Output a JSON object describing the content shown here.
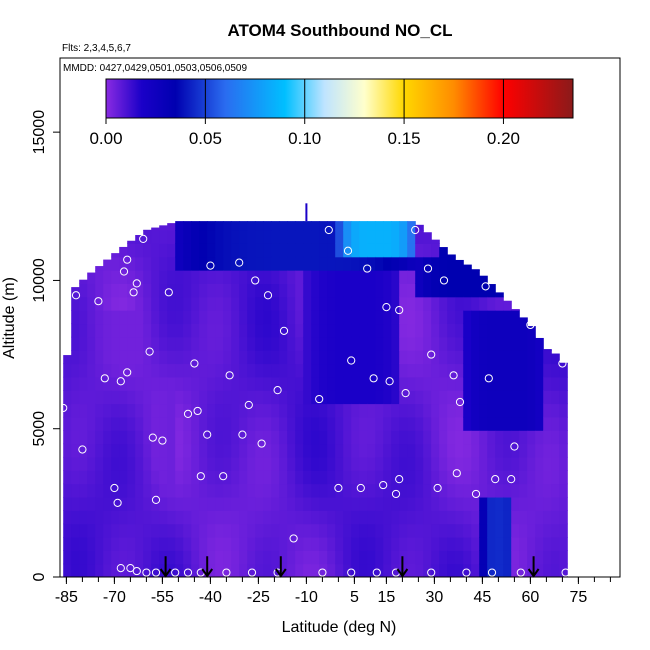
{
  "chart_data": {
    "type": "heatmap",
    "title": "ATOM4 Southbound NO_CL",
    "subtitle_flights": "Flts: 2,3,4,5,6,7",
    "subtitle_dates": "MMDD: 0427,0429,0501,0503,0506,0509",
    "xlabel": "Latitude (deg N)",
    "ylabel": "Altitude (m)",
    "xlim": [
      -87,
      88
    ],
    "ylim": [
      0,
      17500
    ],
    "x_ticks": [
      -85,
      -70,
      -55,
      -40,
      -25,
      -10,
      5,
      15,
      30,
      45,
      60,
      75
    ],
    "x_tick_labels": [
      "-85",
      "-70",
      "-55",
      "-40",
      "-25",
      "-10",
      "5",
      "15",
      "30",
      "45",
      "60",
      "75"
    ],
    "x_minor_step": 5,
    "y_ticks": [
      0,
      5000,
      10000,
      15000
    ],
    "y_tick_labels": [
      "0",
      "5000",
      "10000",
      "15000"
    ],
    "colorbar": {
      "min": 0.0,
      "max": 0.235,
      "ticks": [
        0.0,
        0.05,
        0.1,
        0.15,
        0.2
      ],
      "tick_labels": [
        "0.00",
        "0.05",
        "0.10",
        "0.15",
        "0.20"
      ],
      "stops": [
        {
          "v": 0.0,
          "c": "#8a2be2"
        },
        {
          "v": 0.018,
          "c": "#1a00c8"
        },
        {
          "v": 0.035,
          "c": "#0000b0"
        },
        {
          "v": 0.06,
          "c": "#2a6cf0"
        },
        {
          "v": 0.09,
          "c": "#00bfff"
        },
        {
          "v": 0.11,
          "c": "#bfe4ff"
        },
        {
          "v": 0.13,
          "c": "#ffffcc"
        },
        {
          "v": 0.15,
          "c": "#ffd700"
        },
        {
          "v": 0.175,
          "c": "#ff8c00"
        },
        {
          "v": 0.2,
          "c": "#ff0000"
        },
        {
          "v": 0.235,
          "c": "#8b1a1a"
        }
      ]
    },
    "curtain_envelope": [
      {
        "lat": -86,
        "top": 5900
      },
      {
        "lat": -83,
        "top": 9700
      },
      {
        "lat": -78,
        "top": 10200
      },
      {
        "lat": -70,
        "top": 10900
      },
      {
        "lat": -64,
        "top": 11400
      },
      {
        "lat": -60,
        "top": 11700
      },
      {
        "lat": -50,
        "top": 12000
      },
      {
        "lat": -10,
        "top": 12000
      },
      {
        "lat": 24,
        "top": 12000
      },
      {
        "lat": 28,
        "top": 11600
      },
      {
        "lat": 36,
        "top": 10800
      },
      {
        "lat": 44,
        "top": 10300
      },
      {
        "lat": 52,
        "top": 9400
      },
      {
        "lat": 60,
        "top": 8500
      },
      {
        "lat": 65,
        "top": 7700
      },
      {
        "lat": 70,
        "top": 7400
      },
      {
        "lat": 72,
        "top": 6000
      },
      {
        "lat": 72,
        "top": 0
      }
    ],
    "no_cl_field": {
      "baseline": 0.008,
      "features": [
        {
          "name": "upper-band",
          "lat": [
            -50,
            24
          ],
          "alt": [
            10500,
            12100
          ],
          "value": 0.04
        },
        {
          "name": "upper-high",
          "lat": [
            0,
            24
          ],
          "alt": [
            11000,
            12100
          ],
          "value": 0.085
        },
        {
          "name": "upper-right",
          "lat": [
            24,
            60
          ],
          "alt": [
            9500,
            11000
          ],
          "value": 0.035
        },
        {
          "name": "mid-right",
          "lat": [
            40,
            65
          ],
          "alt": [
            5000,
            9000
          ],
          "value": 0.026
        },
        {
          "name": "mid-center",
          "lat": [
            -10,
            20
          ],
          "alt": [
            6000,
            10200
          ],
          "value": 0.018
        },
        {
          "name": "low-column",
          "lat": [
            45,
            55
          ],
          "alt": [
            0,
            2500
          ],
          "value": 0.045
        },
        {
          "name": "lower-left",
          "lat": [
            -75,
            -50
          ],
          "alt": [
            500,
            9000
          ],
          "value": 0.004
        }
      ]
    },
    "observations": [
      {
        "lat": -86,
        "alt": 5700
      },
      {
        "lat": -80,
        "alt": 4300
      },
      {
        "lat": -82,
        "alt": 9500
      },
      {
        "lat": -75,
        "alt": 9300
      },
      {
        "lat": -73,
        "alt": 6700
      },
      {
        "lat": -70,
        "alt": 3000
      },
      {
        "lat": -69,
        "alt": 2500
      },
      {
        "lat": -68,
        "alt": 6600
      },
      {
        "lat": -66,
        "alt": 6900
      },
      {
        "lat": -67,
        "alt": 10300
      },
      {
        "lat": -66,
        "alt": 10700
      },
      {
        "lat": -64,
        "alt": 9600
      },
      {
        "lat": -63,
        "alt": 9900
      },
      {
        "lat": -61,
        "alt": 11400
      },
      {
        "lat": -59,
        "alt": 7600
      },
      {
        "lat": -57,
        "alt": 2600
      },
      {
        "lat": -58,
        "alt": 4700
      },
      {
        "lat": -55,
        "alt": 4600
      },
      {
        "lat": -53,
        "alt": 9600
      },
      {
        "lat": -47,
        "alt": 5500
      },
      {
        "lat": -45,
        "alt": 7200
      },
      {
        "lat": -44,
        "alt": 5600
      },
      {
        "lat": -43,
        "alt": 3400
      },
      {
        "lat": -41,
        "alt": 4800
      },
      {
        "lat": -40,
        "alt": 10500
      },
      {
        "lat": -36,
        "alt": 3400
      },
      {
        "lat": -34,
        "alt": 6800
      },
      {
        "lat": -31,
        "alt": 10600
      },
      {
        "lat": -30,
        "alt": 4800
      },
      {
        "lat": -28,
        "alt": 5800
      },
      {
        "lat": -26,
        "alt": 10000
      },
      {
        "lat": -24,
        "alt": 4500
      },
      {
        "lat": -22,
        "alt": 9500
      },
      {
        "lat": -19,
        "alt": 6300
      },
      {
        "lat": -17,
        "alt": 8300
      },
      {
        "lat": -14,
        "alt": 1300
      },
      {
        "lat": -6,
        "alt": 6000
      },
      {
        "lat": -3,
        "alt": 11700
      },
      {
        "lat": 0,
        "alt": 3000
      },
      {
        "lat": 3,
        "alt": 11000
      },
      {
        "lat": 4,
        "alt": 7300
      },
      {
        "lat": 7,
        "alt": 3000
      },
      {
        "lat": 9,
        "alt": 10400
      },
      {
        "lat": 11,
        "alt": 6700
      },
      {
        "lat": 14,
        "alt": 3100
      },
      {
        "lat": 15,
        "alt": 9100
      },
      {
        "lat": 16,
        "alt": 6600
      },
      {
        "lat": 18,
        "alt": 2800
      },
      {
        "lat": 19,
        "alt": 3300
      },
      {
        "lat": 19,
        "alt": 9000
      },
      {
        "lat": 21,
        "alt": 6200
      },
      {
        "lat": 24,
        "alt": 11700
      },
      {
        "lat": 28,
        "alt": 10400
      },
      {
        "lat": 29,
        "alt": 7500
      },
      {
        "lat": 31,
        "alt": 3000
      },
      {
        "lat": 33,
        "alt": 10000
      },
      {
        "lat": 36,
        "alt": 6800
      },
      {
        "lat": 37,
        "alt": 3500
      },
      {
        "lat": 38,
        "alt": 5900
      },
      {
        "lat": 43,
        "alt": 2800
      },
      {
        "lat": 46,
        "alt": 9800
      },
      {
        "lat": 47,
        "alt": 6700
      },
      {
        "lat": 49,
        "alt": 3300
      },
      {
        "lat": 54,
        "alt": 3300
      },
      {
        "lat": 55,
        "alt": 4400
      },
      {
        "lat": 60,
        "alt": 8500
      },
      {
        "lat": 70,
        "alt": 7200
      },
      {
        "lat": -68,
        "alt": 300
      },
      {
        "lat": -65,
        "alt": 300
      },
      {
        "lat": -63,
        "alt": 200
      },
      {
        "lat": -60,
        "alt": 150
      },
      {
        "lat": -57,
        "alt": 150
      },
      {
        "lat": -51,
        "alt": 150
      },
      {
        "lat": -47,
        "alt": 150
      },
      {
        "lat": -43,
        "alt": 150
      },
      {
        "lat": -35,
        "alt": 150
      },
      {
        "lat": -27,
        "alt": 150
      },
      {
        "lat": -19,
        "alt": 150
      },
      {
        "lat": -5,
        "alt": 150
      },
      {
        "lat": 4,
        "alt": 150
      },
      {
        "lat": 12,
        "alt": 150
      },
      {
        "lat": 18,
        "alt": 150
      },
      {
        "lat": 29,
        "alt": 150
      },
      {
        "lat": 40,
        "alt": 150
      },
      {
        "lat": 48,
        "alt": 150
      },
      {
        "lat": 57,
        "alt": 150
      },
      {
        "lat": 71,
        "alt": 150
      }
    ],
    "ground_arrows_lat": [
      -54,
      -41,
      -18,
      20,
      61
    ],
    "ground_arrow_top_alt": 700,
    "palette": {
      "background": "#ffffff",
      "axis": "#000000",
      "observation_marker": "#ffffff",
      "arrow": "#000000"
    }
  }
}
